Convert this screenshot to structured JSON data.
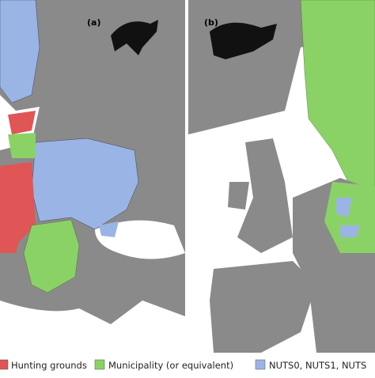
{
  "panels": [
    {
      "label": "(a)"
    },
    {
      "label": "(b)"
    }
  ],
  "legend": [
    {
      "label": "Hunting grounds"
    },
    {
      "label": "Municipality (or equivalent)"
    },
    {
      "label": "NUTS0, NUTS1, NUTS"
    }
  ]
}
